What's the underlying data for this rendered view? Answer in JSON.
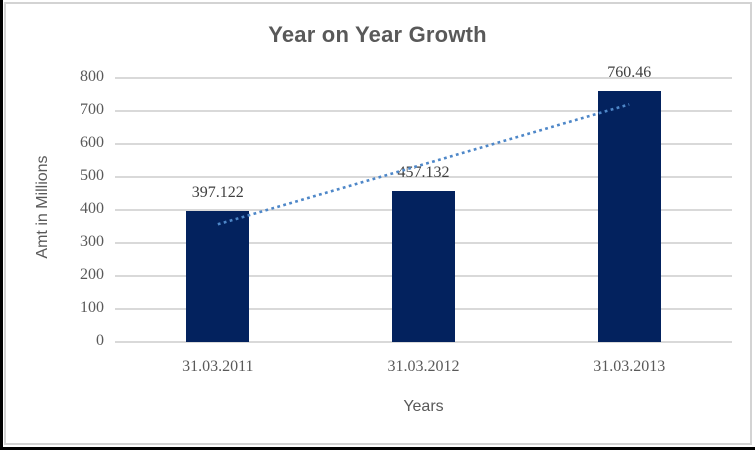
{
  "chart_data": {
    "type": "bar",
    "title": "Year on Year Growth",
    "xlabel": "Years",
    "ylabel": "Amt in Millions",
    "categories": [
      "31.03.2011",
      "31.03.2012",
      "31.03.2013"
    ],
    "values": [
      397.122,
      457.132,
      760.46
    ],
    "data_labels": [
      "397.122",
      "457.132",
      "760.46"
    ],
    "ylim": [
      0,
      800
    ],
    "yticks": [
      0,
      100,
      200,
      300,
      400,
      500,
      600,
      700,
      800
    ],
    "grid": "horizontal",
    "legend": "none",
    "trendline": {
      "type": "linear",
      "style": "dotted",
      "endpoint_values": [
        356.57,
        719.91
      ]
    },
    "colors": {
      "bar": "#03225E",
      "gridline": "#D9D9D9",
      "trendline": "#4E87C8",
      "title_text": "#595959",
      "tick_text": "#595959",
      "data_label_text": "#3F3F3F",
      "chart_border": "#D3D3D3"
    }
  }
}
